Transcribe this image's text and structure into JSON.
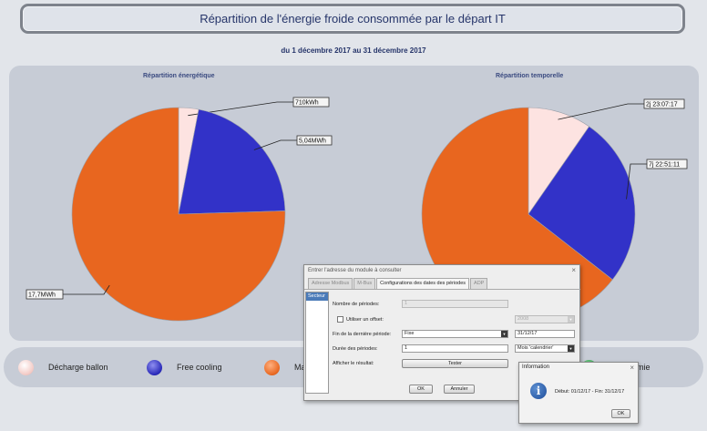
{
  "header": {
    "title": "Répartition de l'énergie froide consommée par le départ IT",
    "period": "du 1 décembre 2017 au 31 décembre 2017"
  },
  "colors": {
    "decharge_ballon": "#fde3e1",
    "free_cooling": "#3232c8",
    "orange": "#e8661f",
    "panel": "#c7ccd6"
  },
  "chart_data": [
    {
      "type": "pie",
      "title": "Répartition énergétique",
      "slices": [
        {
          "label": "710kWh",
          "value": 0.71,
          "color": "#fde3e1"
        },
        {
          "label": "5,04MWh",
          "value": 5.04,
          "color": "#3232c8"
        },
        {
          "label": "17,7MWh",
          "value": 17.7,
          "color": "#e8661f"
        }
      ]
    },
    {
      "type": "pie",
      "title": "Répartition temporelle",
      "slices": [
        {
          "label": "2j 23:07:17",
          "value": 71.12,
          "color": "#fde3e1"
        },
        {
          "label": "7j 22:51:11",
          "value": 190.85,
          "color": "#3232c8"
        },
        {
          "label": "",
          "value": 475.4,
          "color": "#e8661f"
        }
      ]
    }
  ],
  "legend": [
    {
      "label": "Décharge ballon",
      "icon": "circle-light-pink"
    },
    {
      "label": "Free cooling",
      "icon": "circle-blue"
    },
    {
      "label": "Ma",
      "icon": "circle-orange"
    },
    {
      "label": "e géothermie",
      "icon": "circle-green"
    }
  ],
  "dialog": {
    "title": "Entrer l'adresse du module à consulter",
    "close": "×",
    "tabs": [
      "Adresse Modbus",
      "M-Bus",
      "Configurations des dates des périodes",
      "ADP"
    ],
    "sector_item": "Secteur",
    "labels": {
      "nb_periodes": "Nombre de périodes:",
      "offset": "Utiliser un offset:",
      "fin": "Fin de la dernière période:",
      "duree": "Durée des périodes:",
      "afficher": "Afficher le résultat:"
    },
    "values": {
      "nb_periodes": "1",
      "offset_year": "2008",
      "fin_mode": "Fixe",
      "fin_date": "31/12/17",
      "duree": "1",
      "duree_unit": "Mois 'calendrier'"
    },
    "buttons": {
      "tester": "Tester",
      "ok": "OK",
      "annuler": "Annuler"
    }
  },
  "info_dialog": {
    "title": "Information",
    "close": "×",
    "icon": "i",
    "message": "Début: 01/12/17 - Fin: 31/12/17",
    "ok": "OK"
  }
}
